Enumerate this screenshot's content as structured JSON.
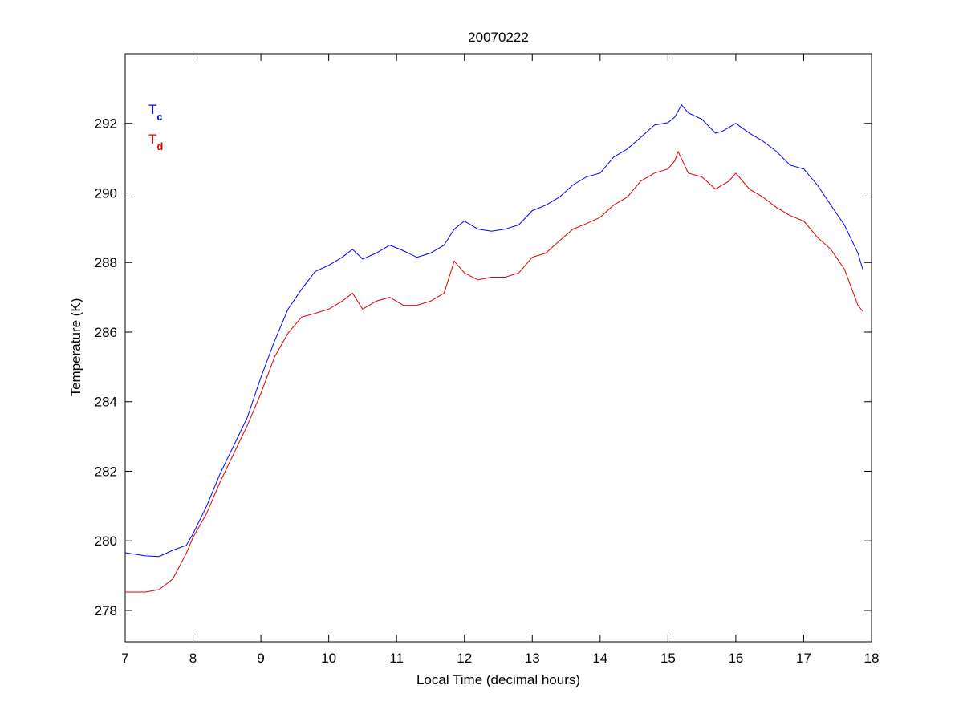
{
  "chart_data": {
    "type": "line",
    "title": "20070222",
    "xlabel": "Local Time (decimal hours)",
    "ylabel": "Temperature (K)",
    "xlim": [
      7,
      18
    ],
    "ylim": [
      277.1,
      294
    ],
    "xticks": [
      7,
      8,
      9,
      10,
      11,
      12,
      13,
      14,
      15,
      16,
      17,
      18
    ],
    "yticks": [
      278,
      280,
      282,
      284,
      286,
      288,
      290,
      292
    ],
    "grid": false,
    "legend_placement": "top-left",
    "series": [
      {
        "name": "Tc",
        "name_main": "T",
        "name_sub": "c",
        "color": "#0000ff",
        "x": [
          7.0,
          7.3,
          7.5,
          7.7,
          7.9,
          8.0,
          8.2,
          8.4,
          8.6,
          8.8,
          9.0,
          9.2,
          9.4,
          9.6,
          9.8,
          10.0,
          10.2,
          10.35,
          10.5,
          10.7,
          10.9,
          11.1,
          11.3,
          11.5,
          11.7,
          11.85,
          12.0,
          12.2,
          12.4,
          12.6,
          12.8,
          13.0,
          13.2,
          13.4,
          13.6,
          13.8,
          14.0,
          14.2,
          14.4,
          14.6,
          14.8,
          15.0,
          15.1,
          15.2,
          15.3,
          15.5,
          15.7,
          15.8,
          16.0,
          16.2,
          16.4,
          16.6,
          16.8,
          17.0,
          17.2,
          17.4,
          17.6,
          17.8,
          17.87
        ],
        "y": [
          279.66,
          279.57,
          279.55,
          279.73,
          279.87,
          280.2,
          281.0,
          281.94,
          282.74,
          283.55,
          284.7,
          285.74,
          286.66,
          287.23,
          287.74,
          287.92,
          288.15,
          288.38,
          288.1,
          288.27,
          288.5,
          288.34,
          288.15,
          288.27,
          288.5,
          288.96,
          289.19,
          288.96,
          288.9,
          288.96,
          289.08,
          289.49,
          289.65,
          289.88,
          290.23,
          290.46,
          290.57,
          291.03,
          291.26,
          291.6,
          291.95,
          292.02,
          292.18,
          292.53,
          292.3,
          292.12,
          291.72,
          291.77,
          292.0,
          291.72,
          291.49,
          291.19,
          290.8,
          290.69,
          290.23,
          289.65,
          289.08,
          288.27,
          287.81
        ]
      },
      {
        "name": "Td",
        "name_main": "T",
        "name_sub": "d",
        "color": "#e00000",
        "x": [
          7.0,
          7.3,
          7.5,
          7.7,
          7.9,
          8.0,
          8.2,
          8.4,
          8.6,
          8.8,
          9.0,
          9.2,
          9.4,
          9.6,
          9.8,
          10.0,
          10.2,
          10.35,
          10.5,
          10.7,
          10.9,
          11.1,
          11.3,
          11.5,
          11.7,
          11.85,
          12.0,
          12.2,
          12.4,
          12.6,
          12.8,
          13.0,
          13.2,
          13.4,
          13.6,
          13.8,
          14.0,
          14.2,
          14.4,
          14.6,
          14.8,
          15.0,
          15.1,
          15.15,
          15.3,
          15.5,
          15.7,
          15.9,
          16.0,
          16.2,
          16.4,
          16.6,
          16.8,
          17.0,
          17.2,
          17.4,
          17.6,
          17.8,
          17.87
        ],
        "y": [
          278.53,
          278.53,
          278.6,
          278.9,
          279.64,
          280.1,
          280.79,
          281.7,
          282.51,
          283.32,
          284.24,
          285.28,
          285.97,
          286.43,
          286.54,
          286.66,
          286.89,
          287.12,
          286.66,
          286.89,
          287.0,
          286.77,
          286.77,
          286.89,
          287.12,
          288.04,
          287.7,
          287.5,
          287.58,
          287.58,
          287.7,
          288.15,
          288.27,
          288.62,
          288.96,
          289.12,
          289.3,
          289.65,
          289.88,
          290.34,
          290.57,
          290.69,
          290.92,
          291.19,
          290.57,
          290.46,
          290.11,
          290.34,
          290.57,
          290.11,
          289.88,
          289.58,
          289.35,
          289.19,
          288.73,
          288.38,
          287.81,
          286.77,
          286.6
        ]
      }
    ]
  }
}
